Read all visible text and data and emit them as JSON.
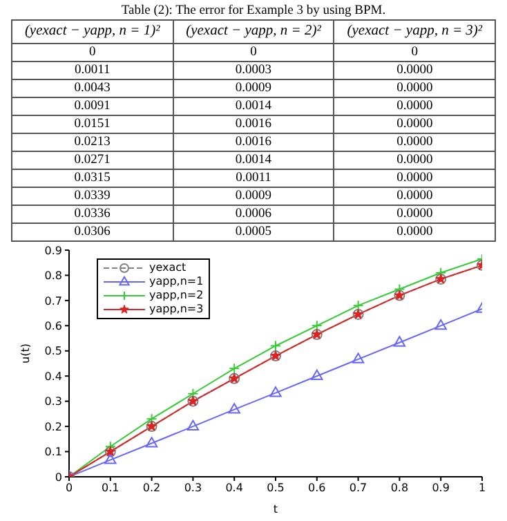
{
  "chart_data": [
    {
      "type": "other",
      "title": "Table (2): The error for Example 3 by using BPM.",
      "categories": [
        "(yexact − yapp, n = 1)²",
        "(yexact − yapp, n = 2)²",
        "(yexact − yapp, n = 3)²"
      ],
      "annotations": [
        "0",
        "0",
        "0",
        "0.0011",
        "0.0003",
        "0.0000",
        "0.0043",
        "0.0009",
        "0.0000",
        "0.0091",
        "0.0014",
        "0.0000",
        "0.0151",
        "0.0016",
        "0.0000",
        "0.0213",
        "0.0016",
        "0.0000",
        "0.0271",
        "0.0014",
        "0.0000",
        "0.0315",
        "0.0011",
        "0.0000",
        "0.0339",
        "0.0009",
        "0.0000",
        "0.0336",
        "0.0006",
        "0.0000",
        "0.0306",
        "0.0005",
        "0.0000"
      ]
    },
    {
      "type": "line",
      "xlabel": "t",
      "ylabel": "u(t)",
      "x": [
        0,
        0.1,
        0.2,
        0.3,
        0.4,
        0.5,
        0.6,
        0.7,
        0.8,
        0.9,
        1
      ],
      "xlim": [
        0,
        1
      ],
      "xticks": [
        0,
        0.1,
        0.2,
        0.3,
        0.4,
        0.5,
        0.6,
        0.7,
        0.8,
        0.9,
        1
      ],
      "ylim": [
        0,
        0.9
      ],
      "yticks": [
        0,
        0.1,
        0.2,
        0.3,
        0.4,
        0.5,
        0.6,
        0.7,
        0.8,
        0.9
      ],
      "legend": "top left",
      "series": [
        {
          "name": "yexact",
          "color": "#808080",
          "marker": "circle",
          "line_style": "dashed",
          "values": [
            0,
            0.1,
            0.2,
            0.3,
            0.39,
            0.48,
            0.565,
            0.645,
            0.72,
            0.785,
            0.84
          ]
        },
        {
          "name": "yapp,n=1",
          "color": "#6666ff",
          "marker": "triangle",
          "line_style": "solid",
          "values": [
            0,
            0.067,
            0.133,
            0.2,
            0.267,
            0.333,
            0.4,
            0.467,
            0.533,
            0.6,
            0.667
          ]
        },
        {
          "name": "yapp,n=2",
          "color": "#33cc33",
          "marker": "cross",
          "line_style": "solid",
          "values": [
            0,
            0.12,
            0.23,
            0.33,
            0.43,
            0.52,
            0.6,
            0.68,
            0.745,
            0.81,
            0.865
          ]
        },
        {
          "name": "yapp,n=3",
          "color": "#dd2222",
          "marker": "star",
          "line_style": "solid",
          "values": [
            0,
            0.1,
            0.2,
            0.3,
            0.39,
            0.48,
            0.565,
            0.645,
            0.72,
            0.785,
            0.84
          ]
        }
      ]
    }
  ]
}
